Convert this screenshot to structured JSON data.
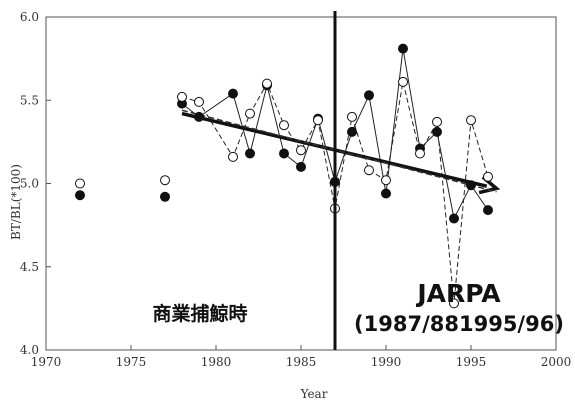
{
  "chart_data": {
    "type": "scatter",
    "title": "",
    "xlabel": "Year",
    "ylabel": "BT/BL(*100)",
    "xlim": [
      1970,
      2000
    ],
    "ylim": [
      4.0,
      6.0
    ],
    "xticks": [
      "1970",
      "1975",
      "1980",
      "1985",
      "1990",
      "1995",
      "2000"
    ],
    "yticks": [
      "4.0",
      "4.5",
      "5.0",
      "5.5",
      "6.0"
    ],
    "grid": false,
    "series": [
      {
        "marker": "filled",
        "line": "solid",
        "connect_from": 1978,
        "points": [
          [
            1972,
            4.93
          ],
          [
            1977,
            4.92
          ],
          [
            1978,
            5.48
          ],
          [
            1979,
            5.4
          ],
          [
            1981,
            5.54
          ],
          [
            1982,
            5.18
          ],
          [
            1983,
            5.59
          ],
          [
            1984,
            5.18
          ],
          [
            1985,
            5.1
          ],
          [
            1986,
            5.39
          ],
          [
            1987,
            5.01
          ],
          [
            1988,
            5.31
          ],
          [
            1989,
            5.53
          ],
          [
            1990,
            4.94
          ],
          [
            1991,
            5.81
          ],
          [
            1992,
            5.21
          ],
          [
            1993,
            5.31
          ],
          [
            1994,
            4.79
          ],
          [
            1995,
            4.99
          ],
          [
            1996,
            4.84
          ]
        ]
      },
      {
        "marker": "open",
        "line": "dashed",
        "connect_from": 1978,
        "points": [
          [
            1972,
            5.0
          ],
          [
            1977,
            5.02
          ],
          [
            1978,
            5.52
          ],
          [
            1979,
            5.49
          ],
          [
            1981,
            5.16
          ],
          [
            1982,
            5.42
          ],
          [
            1983,
            5.6
          ],
          [
            1984,
            5.35
          ],
          [
            1985,
            5.2
          ],
          [
            1986,
            5.38
          ],
          [
            1987,
            4.85
          ],
          [
            1988,
            5.4
          ],
          [
            1989,
            5.08
          ],
          [
            1990,
            5.02
          ],
          [
            1991,
            5.61
          ],
          [
            1992,
            5.18
          ],
          [
            1993,
            5.37
          ],
          [
            1994,
            4.28
          ],
          [
            1995,
            5.38
          ],
          [
            1996,
            5.04
          ]
        ]
      }
    ],
    "trend_lines": [
      {
        "style": "solid-bold-arrow",
        "from": [
          1978,
          5.42
        ],
        "to": [
          1996.5,
          4.97
        ]
      },
      {
        "style": "dashed",
        "from": [
          1978,
          5.44
        ],
        "to": [
          1996.5,
          4.95
        ]
      }
    ],
    "vertical_line": {
      "x": 1987
    },
    "annotations": {
      "commercial": "商業捕鯨時",
      "jarpa_title": "JARPA",
      "jarpa_years": "(1987/881995/96)"
    }
  }
}
